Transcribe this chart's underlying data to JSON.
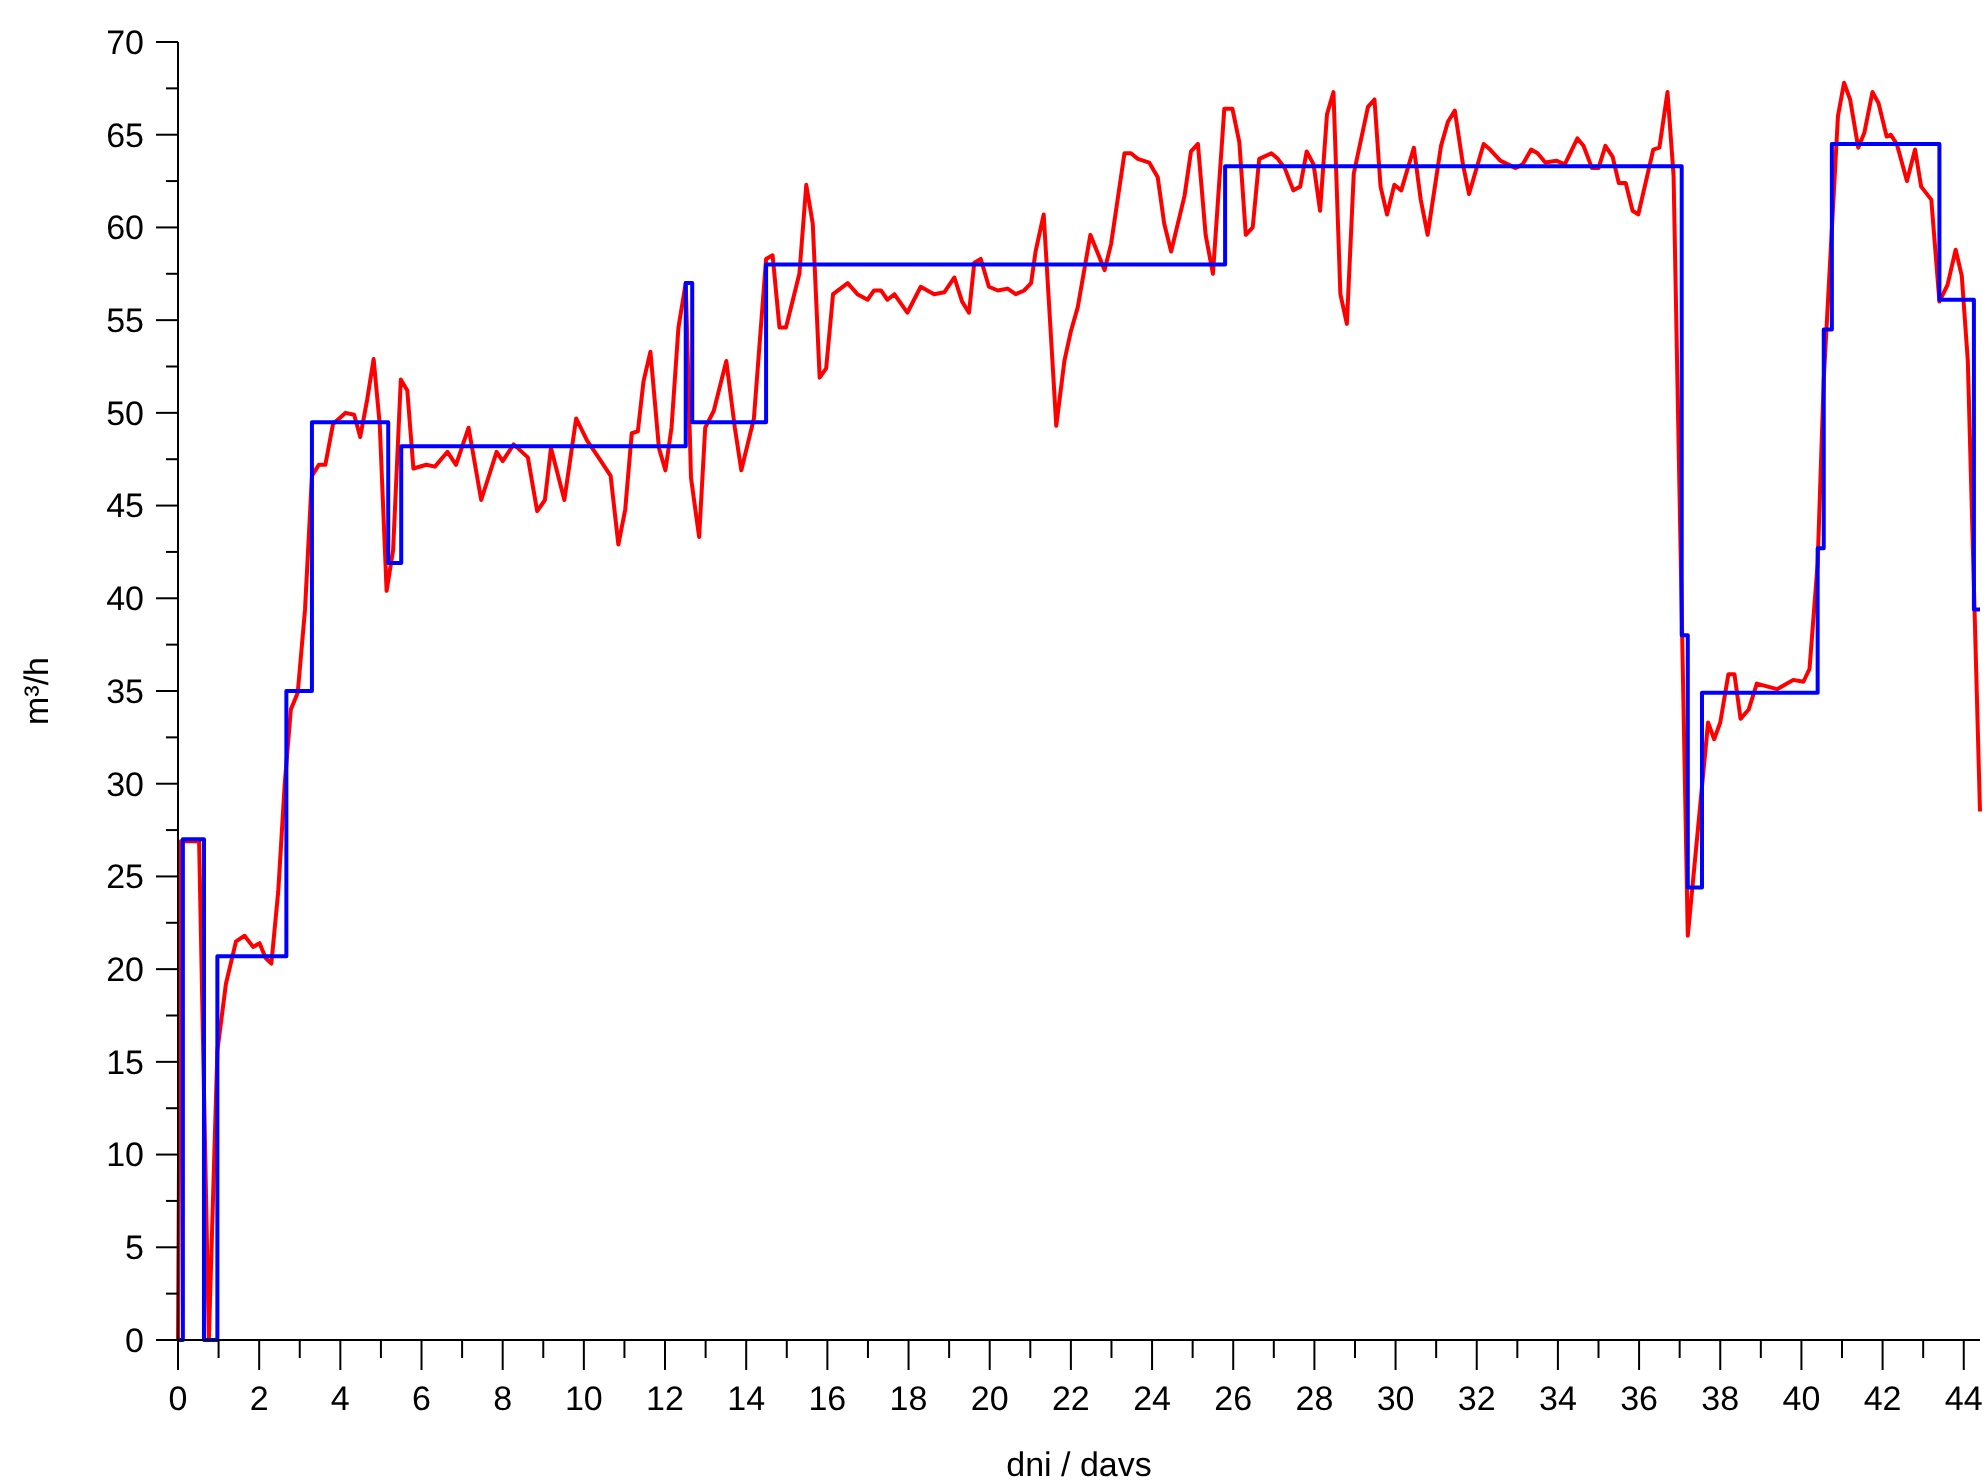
{
  "chart_data": {
    "type": "line",
    "xlabel": "dni / davs",
    "ylabel": "m³/h",
    "xlim": [
      0,
      44.4
    ],
    "ylim": [
      0,
      70
    ],
    "xticks": [
      0,
      {
        "value": 1,
        "label": null
      },
      2,
      {
        "value": 3,
        "label": null
      },
      4,
      {
        "value": 5,
        "label": null
      },
      6,
      {
        "value": 7,
        "label": null
      },
      8,
      {
        "value": 9,
        "label": null
      },
      10,
      {
        "value": 11,
        "label": null
      },
      12,
      {
        "value": 13,
        "label": null
      },
      14,
      {
        "value": 15,
        "label": null
      },
      16,
      {
        "value": 17,
        "label": null
      },
      18,
      {
        "value": 19,
        "label": null
      },
      20,
      {
        "value": 21,
        "label": null
      },
      22,
      {
        "value": 23,
        "label": null
      },
      24,
      {
        "value": 25,
        "label": null
      },
      26,
      {
        "value": 27,
        "label": null
      },
      28,
      {
        "value": 29,
        "label": null
      },
      30,
      {
        "value": 31,
        "label": null
      },
      32,
      {
        "value": 33,
        "label": null
      },
      34,
      {
        "value": 35,
        "label": null
      },
      36,
      {
        "value": 37,
        "label": null
      },
      38,
      {
        "value": 39,
        "label": null
      },
      40,
      {
        "value": 41,
        "label": null
      },
      42,
      {
        "value": 43,
        "label": null
      },
      44
    ],
    "yticks": [
      0,
      {
        "value": 2.5,
        "label": null
      },
      5,
      {
        "value": 7.5,
        "label": null
      },
      10,
      {
        "value": 12.5,
        "label": null
      },
      15,
      {
        "value": 17.5,
        "label": null
      },
      20,
      {
        "value": 22.5,
        "label": null
      },
      25,
      {
        "value": 27.5,
        "label": null
      },
      30,
      {
        "value": 32.5,
        "label": null
      },
      35,
      {
        "value": 37.5,
        "label": null
      },
      40,
      {
        "value": 42.5,
        "label": null
      },
      45,
      {
        "value": 47.5,
        "label": null
      },
      50,
      {
        "value": 52.5,
        "label": null
      },
      55,
      {
        "value": 57.5,
        "label": null
      },
      60,
      {
        "value": 62.5,
        "label": null
      },
      65,
      {
        "value": 67.5,
        "label": null
      },
      70
    ],
    "grid": false,
    "marker": "none",
    "line_style": "solid",
    "series": [
      {
        "color": "#ff0000",
        "x": [
          0,
          0.07,
          0.52,
          0.76,
          0.97,
          1.18,
          1.43,
          1.64,
          1.85,
          2.01,
          2.16,
          2.3,
          2.47,
          2.63,
          2.78,
          2.95,
          3.13,
          3.3,
          3.47,
          3.63,
          3.82,
          4.13,
          4.34,
          4.49,
          4.66,
          4.82,
          4.97,
          5.14,
          5.3,
          5.49,
          5.65,
          5.8,
          6.12,
          6.33,
          6.64,
          6.85,
          7.16,
          7.47,
          7.85,
          8.0,
          8.27,
          8.62,
          8.85,
          9.04,
          9.19,
          9.52,
          9.81,
          10.08,
          10.39,
          10.66,
          10.85,
          11.02,
          11.18,
          11.33,
          11.47,
          11.64,
          11.85,
          12.01,
          12.16,
          12.33,
          12.51,
          12.64,
          12.84,
          12.99,
          13.2,
          13.51,
          13.72,
          13.88,
          14.19,
          14.49,
          14.65,
          14.82,
          14.98,
          15.31,
          15.48,
          15.64,
          15.81,
          15.97,
          16.14,
          16.5,
          16.74,
          16.99,
          17.15,
          17.32,
          17.48,
          17.65,
          17.97,
          18.3,
          18.63,
          18.88,
          19.13,
          19.32,
          19.49,
          19.62,
          19.78,
          19.98,
          20.2,
          20.44,
          20.64,
          20.85,
          21.02,
          21.13,
          21.33,
          21.64,
          21.84,
          22.0,
          22.17,
          22.48,
          22.83,
          22.99,
          23.32,
          23.48,
          23.65,
          23.93,
          24.14,
          24.3,
          24.47,
          24.8,
          24.96,
          25.13,
          25.32,
          25.5,
          25.78,
          25.98,
          26.15,
          26.31,
          26.48,
          26.64,
          26.94,
          27.1,
          27.27,
          27.48,
          27.65,
          27.81,
          27.98,
          28.14,
          28.31,
          28.47,
          28.64,
          28.8,
          28.97,
          29.32,
          29.48,
          29.63,
          29.79,
          29.97,
          30.14,
          30.45,
          30.62,
          30.79,
          31.12,
          31.29,
          31.46,
          31.66,
          31.81,
          32.17,
          32.33,
          32.58,
          32.96,
          33.13,
          33.34,
          33.5,
          33.69,
          33.96,
          34.17,
          34.48,
          34.63,
          34.84,
          35.0,
          35.17,
          35.35,
          35.5,
          35.67,
          35.84,
          35.98,
          36.35,
          36.5,
          36.7,
          36.85,
          37.2,
          37.7,
          37.85,
          38.0,
          38.2,
          38.35,
          38.5,
          38.7,
          38.9,
          39.4,
          39.8,
          40.05,
          40.2,
          40.4,
          40.55,
          40.9,
          41.05,
          41.2,
          41.4,
          41.55,
          41.75,
          41.9,
          42.1,
          42.2,
          42.35,
          42.6,
          42.8,
          42.95,
          43.2,
          43.4,
          43.6,
          43.8,
          43.95,
          44.1,
          44.4
        ],
        "values": [
          0,
          26.9,
          26.9,
          0,
          15.6,
          19.2,
          21.5,
          21.8,
          21.2,
          21.4,
          20.6,
          20.3,
          24.2,
          30,
          34,
          34.9,
          39.4,
          46.6,
          47.2,
          47.2,
          49.4,
          50,
          49.9,
          48.7,
          50.7,
          52.9,
          49.4,
          40.4,
          42.6,
          51.8,
          51.2,
          47,
          47.2,
          47.1,
          47.9,
          47.2,
          49.2,
          45.3,
          47.9,
          47.4,
          48.3,
          47.6,
          44.7,
          45.3,
          48.1,
          45.3,
          49.7,
          48.5,
          47.5,
          46.6,
          42.9,
          44.8,
          48.9,
          49,
          51.7,
          53.3,
          48.1,
          46.9,
          49.2,
          54.6,
          57,
          46.5,
          43.3,
          49.2,
          50.1,
          52.8,
          49.2,
          46.9,
          49.7,
          58.3,
          58.5,
          54.6,
          54.6,
          57.5,
          62.3,
          60.2,
          51.9,
          52.4,
          56.4,
          57,
          56.4,
          56.1,
          56.6,
          56.6,
          56.1,
          56.4,
          55.4,
          56.8,
          56.4,
          56.5,
          57.3,
          56,
          55.4,
          58.1,
          58.3,
          56.8,
          56.6,
          56.7,
          56.4,
          56.6,
          57,
          58.7,
          60.7,
          49.3,
          52.8,
          54.4,
          55.7,
          59.6,
          57.7,
          59.1,
          64,
          64,
          63.7,
          63.5,
          62.7,
          60.2,
          58.7,
          61.7,
          64.1,
          64.5,
          59.6,
          57.5,
          66.4,
          66.4,
          64.6,
          59.6,
          60,
          63.7,
          64,
          63.7,
          63.2,
          62,
          62.2,
          64.1,
          63.4,
          60.9,
          66.1,
          67.3,
          56.4,
          54.8,
          62.9,
          66.5,
          66.9,
          62.2,
          60.7,
          62.3,
          62,
          64.3,
          61.5,
          59.6,
          64.4,
          65.7,
          66.3,
          63.4,
          61.8,
          64.5,
          64.2,
          63.6,
          63.2,
          63.4,
          64.2,
          64,
          63.5,
          63.6,
          63.4,
          64.8,
          64.4,
          63.2,
          63.2,
          64.4,
          63.8,
          62.4,
          62.4,
          60.9,
          60.7,
          64.2,
          64.3,
          67.3,
          62.8,
          21.8,
          33.3,
          32.4,
          33.3,
          35.9,
          35.9,
          33.5,
          34,
          35.4,
          35.1,
          35.6,
          35.5,
          36.2,
          41.9,
          51.8,
          66,
          67.8,
          66.9,
          64.3,
          65.1,
          67.3,
          66.7,
          64.9,
          65,
          64.5,
          62.5,
          64.2,
          62.2,
          61.5,
          56,
          56.9,
          58.8,
          57.4,
          52.8,
          28.5
        ]
      },
      {
        "type": "step",
        "color": "#0000ff",
        "x": [
          0,
          0.12,
          0.64,
          0.97,
          2.67,
          3.3,
          5.18,
          5.5,
          12.51,
          12.67,
          14.49,
          25.8,
          37.05,
          37.2,
          37.55,
          40.4,
          40.55,
          40.75,
          43.4,
          44.25,
          44.4
        ],
        "values": [
          0,
          27,
          0,
          20.7,
          35,
          49.5,
          41.9,
          48.2,
          57,
          49.5,
          58,
          63.3,
          38,
          24.4,
          34.9,
          42.7,
          54.5,
          64.5,
          56.1,
          39.4,
          39.4
        ]
      }
    ]
  }
}
